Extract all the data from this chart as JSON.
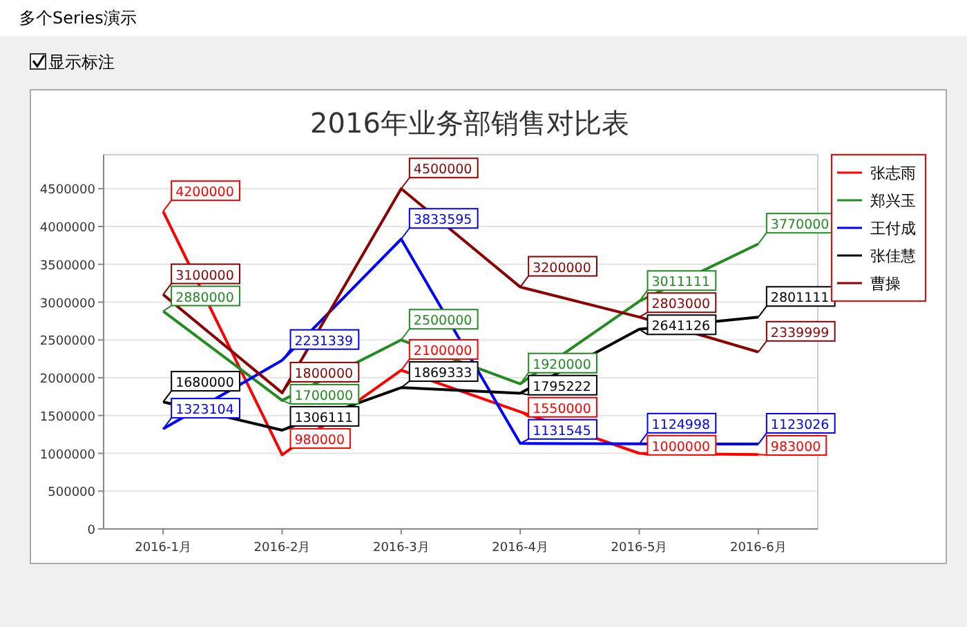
{
  "chart_data": {
    "type": "line",
    "title": "2016年业务部销售对比表",
    "annotations": [
      "多个Series演示",
      "显示标注"
    ],
    "categories": [
      "2016-1月",
      "2016-2月",
      "2016-3月",
      "2016-4月",
      "2016-5月",
      "2016-6月"
    ],
    "series": [
      {
        "name": "张志雨",
        "color": "#ff0000",
        "values": [
          4200000,
          980000,
          2100000,
          1550000,
          1000000,
          983000
        ]
      },
      {
        "name": "郑兴玉",
        "color": "#228b22",
        "values": [
          2880000,
          1700000,
          2500000,
          1920000,
          3011111,
          3770000
        ]
      },
      {
        "name": "王付成",
        "color": "#0000ff",
        "values": [
          1323104,
          2231339,
          3833595,
          1131545,
          1124998,
          1123026
        ]
      },
      {
        "name": "张佳慧",
        "color": "#000000",
        "values": [
          1680000,
          1306111,
          1869333,
          1795222,
          2641126,
          2801111
        ]
      },
      {
        "name": "曹操",
        "color": "#8b0000",
        "values": [
          3100000,
          1800000,
          4500000,
          3200000,
          2803000,
          2339999
        ]
      }
    ],
    "ylim": [
      0,
      4950000
    ],
    "yticks": [
      0,
      500000,
      1000000,
      1500000,
      2000000,
      2500000,
      3000000,
      3500000,
      4000000,
      4500000
    ],
    "grid": "y",
    "legend": "right",
    "data_labels": true,
    "marker": "none",
    "line_style": "solid"
  }
}
